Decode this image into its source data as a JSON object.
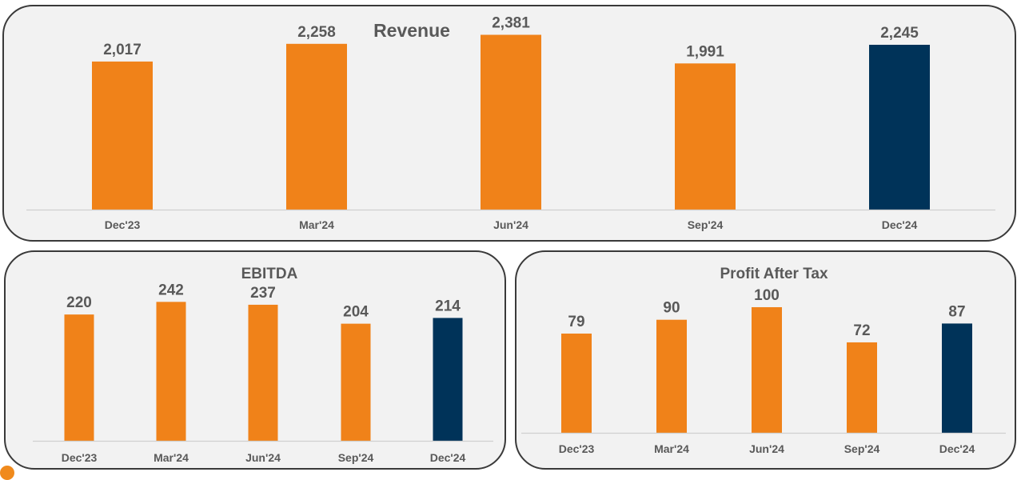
{
  "colors": {
    "bar": "#f08219",
    "highlight": "#003359",
    "text": "#595959",
    "panel_bg": "#f2f2f2",
    "panel_border": "#3a3a3a"
  },
  "chart_data": [
    {
      "type": "bar",
      "title": "Revenue",
      "categories": [
        "Dec'23",
        "Mar'24",
        "Jun'24",
        "Sep'24",
        "Dec'24"
      ],
      "values": [
        2017,
        2258,
        2381,
        1991,
        2245
      ],
      "value_labels": [
        "2,017",
        "2,258",
        "2,381",
        "1,991",
        "2,245"
      ],
      "highlight_index": 4,
      "ylim": [
        0,
        2550
      ],
      "grid": false,
      "legend": "none"
    },
    {
      "type": "bar",
      "title": "EBITDA",
      "categories": [
        "Dec'23",
        "Mar'24",
        "Jun'24",
        "Sep'24",
        "Dec'24"
      ],
      "values": [
        220,
        242,
        237,
        204,
        214
      ],
      "value_labels": [
        "220",
        "242",
        "237",
        "204",
        "214"
      ],
      "highlight_index": 4,
      "ylim": [
        0,
        262
      ],
      "grid": false,
      "legend": "none"
    },
    {
      "type": "bar",
      "title": "Profit After Tax",
      "categories": [
        "Dec'23",
        "Mar'24",
        "Jun'24",
        "Sep'24",
        "Dec'24"
      ],
      "values": [
        79,
        90,
        100,
        72,
        87
      ],
      "value_labels": [
        "79",
        "90",
        "100",
        "72",
        "87"
      ],
      "highlight_index": 4,
      "ylim": [
        0,
        107
      ],
      "grid": false,
      "legend": "none"
    }
  ]
}
